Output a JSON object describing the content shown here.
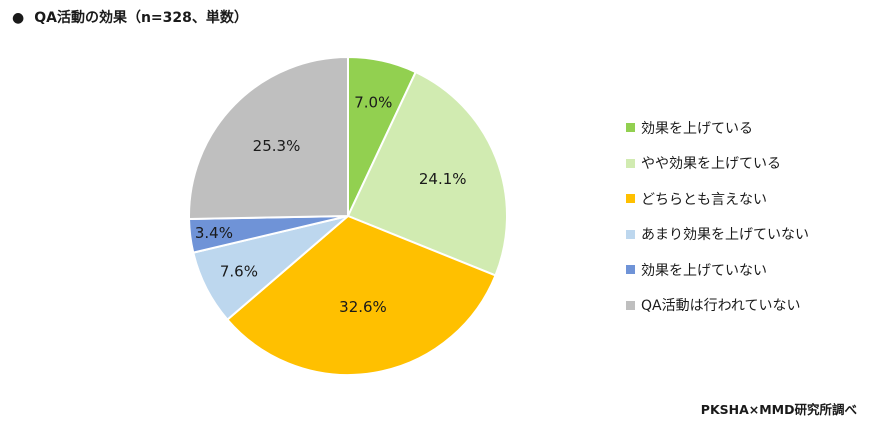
{
  "title": {
    "bullet": "●",
    "text": "QA活動の効果（n=328、単数）"
  },
  "source": "PKSHA×MMD研究所調べ",
  "chart_data": {
    "type": "pie",
    "title": "QA活動の効果（n=328、単数）",
    "legend_position": "right",
    "slices": [
      {
        "label": "効果を上げている",
        "value": 7.0,
        "display": "7.0%",
        "color": "#92d050"
      },
      {
        "label": "やや効果を上げている",
        "value": 24.1,
        "display": "24.1%",
        "color": "#d1ebb1"
      },
      {
        "label": "どちらとも言えない",
        "value": 32.6,
        "display": "32.6%",
        "color": "#ffc000"
      },
      {
        "label": "あまり効果を上げていない",
        "value": 7.6,
        "display": "7.6%",
        "color": "#bdd7ee"
      },
      {
        "label": "効果を上げていない",
        "value": 3.4,
        "display": "3.4%",
        "color": "#6f93d7"
      },
      {
        "label": "QA活動は行われていない",
        "value": 25.3,
        "display": "25.3%",
        "color": "#bfbfbf"
      }
    ]
  }
}
